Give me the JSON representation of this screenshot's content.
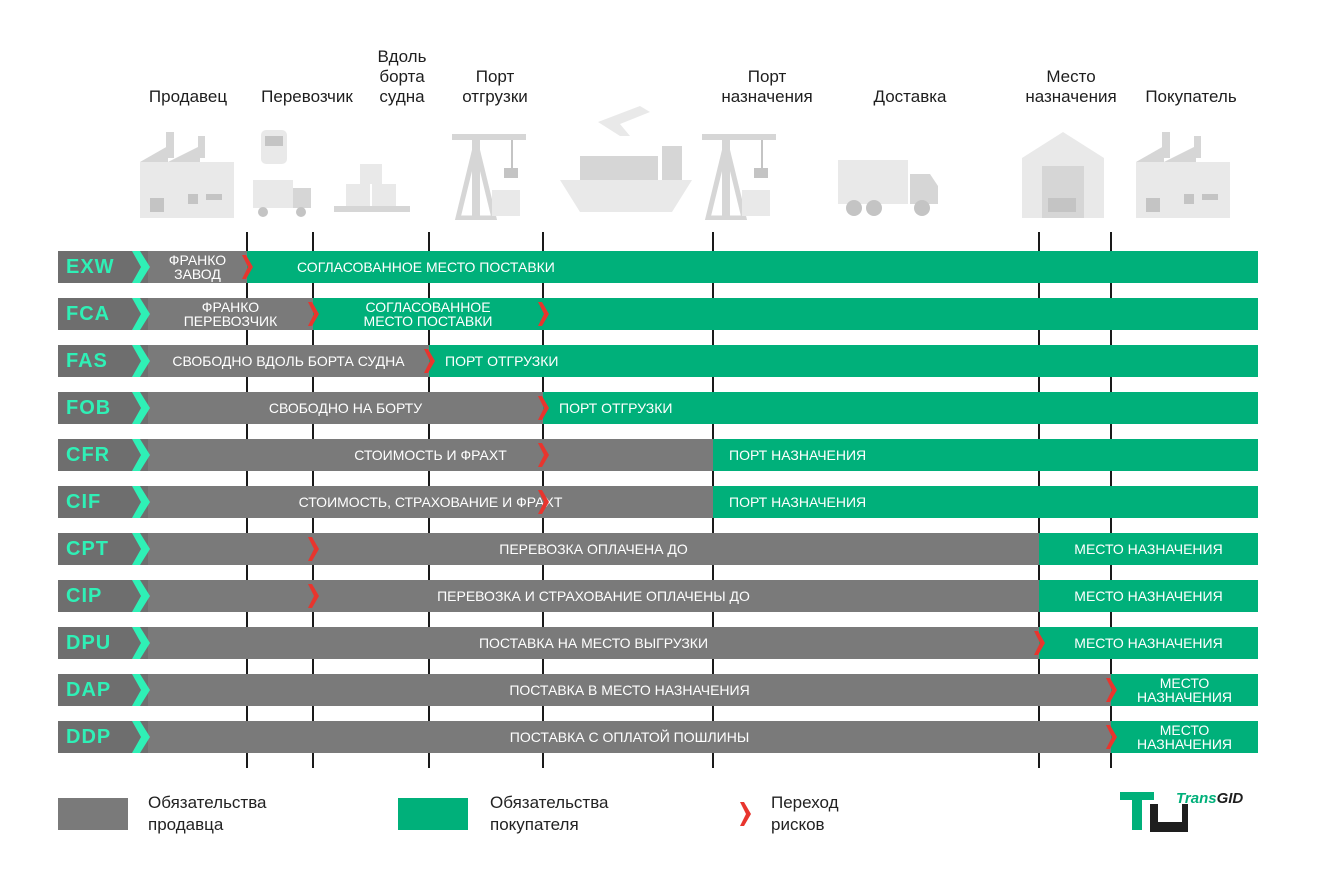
{
  "columns": [
    {
      "id": "seller",
      "label": "Продавец",
      "icon": "factory-icon"
    },
    {
      "id": "carrier",
      "label": "Перевозчик",
      "icon": "train-truck-icon"
    },
    {
      "id": "alongside",
      "label": "Вдоль\nборта\nсудна",
      "icon": "cargo-boxes-icon"
    },
    {
      "id": "port-loading",
      "label": "Порт\nотгрузки",
      "icon": "port-crane-icon"
    },
    {
      "id": "transit",
      "label": "",
      "icon": "ship-plane-icon"
    },
    {
      "id": "port-destination",
      "label": "Порт\nназначения",
      "icon": "port-crane-icon"
    },
    {
      "id": "delivery",
      "label": "Доставка",
      "icon": "truck-icon"
    },
    {
      "id": "destination",
      "label": "Место\nназначения",
      "icon": "warehouse-icon"
    },
    {
      "id": "buyer",
      "label": "Покупатель",
      "icon": "factory-icon"
    }
  ],
  "rows": [
    {
      "code": "EXW",
      "transfer": 1,
      "risk": 1,
      "seller_label": "ФРАНКО\nЗАВОД",
      "buyer_label": "СОГЛАСОВАННОЕ МЕСТО ПОСТАВКИ",
      "extra_risks": []
    },
    {
      "code": "FCA",
      "transfer": 2,
      "risk": 2,
      "seller_label": "ФРАНКО\nПЕРЕВОЗЧИК",
      "buyer_label": "",
      "middle_label": "СОГЛАСОВАННОЕ\nМЕСТО ПОСТАВКИ",
      "extra_risks": [
        4
      ]
    },
    {
      "code": "FAS",
      "transfer": 3,
      "risk": 3,
      "seller_label": "СВОБОДНО ВДОЛЬ БОРТА СУДНА",
      "buyer_label": "ПОРТ ОТГРУЗКИ",
      "extra_risks": []
    },
    {
      "code": "FOB",
      "transfer": 4,
      "risk": 4,
      "seller_label": "СВОБОДНО НА БОРТУ",
      "buyer_label": "ПОРТ ОТГРУЗКИ",
      "extra_risks": []
    },
    {
      "code": "CFR",
      "transfer": 5,
      "risk": 4,
      "seller_label": "СТОИМОСТЬ И ФРАХТ",
      "buyer_label": "ПОРТ НАЗНАЧЕНИЯ",
      "extra_risks": []
    },
    {
      "code": "CIF",
      "transfer": 5,
      "risk": 4,
      "seller_label": "СТОИМОСТЬ, СТРАХОВАНИЕ И ФРАХТ",
      "buyer_label": "ПОРТ НАЗНАЧЕНИЯ",
      "extra_risks": []
    },
    {
      "code": "CPT",
      "transfer": 6,
      "risk": 2,
      "seller_label": "ПЕРЕВОЗКА ОПЛАЧЕНА ДО",
      "buyer_label": "МЕСТО НАЗНАЧЕНИЯ",
      "extra_risks": []
    },
    {
      "code": "CIP",
      "transfer": 6,
      "risk": 2,
      "seller_label": "ПЕРЕВОЗКА И СТРАХОВАНИЕ ОПЛАЧЕНЫ ДО",
      "buyer_label": "МЕСТО НАЗНАЧЕНИЯ",
      "extra_risks": []
    },
    {
      "code": "DPU",
      "transfer": 6,
      "risk": 6,
      "seller_label": "ПОСТАВКА НА МЕСТО ВЫГРУЗКИ",
      "buyer_label": "МЕСТО НАЗНАЧЕНИЯ",
      "extra_risks": []
    },
    {
      "code": "DAP",
      "transfer": 7,
      "risk": 7,
      "seller_label": "ПОСТАВКА В МЕСТО НАЗНАЧЕНИЯ",
      "buyer_label": "МЕСТО\nНАЗНАЧЕНИЯ",
      "extra_risks": []
    },
    {
      "code": "DDP",
      "transfer": 7,
      "risk": 7,
      "seller_label": "ПОСТАВКА С ОПЛАТОЙ ПОШЛИНЫ",
      "buyer_label": "МЕСТО\nНАЗНАЧЕНИЯ",
      "extra_risks": []
    }
  ],
  "legend": {
    "seller": "Обязательства\nпродавца",
    "buyer": "Обязательства\nпокупателя",
    "risk": "Переход\nрисков"
  },
  "logo": {
    "part1": "Trans",
    "part2": "GID"
  },
  "colors": {
    "seller": "#7a7a7a",
    "buyer": "#00b07a",
    "risk": "#e8352e",
    "code_text": "#2ff0b6"
  }
}
